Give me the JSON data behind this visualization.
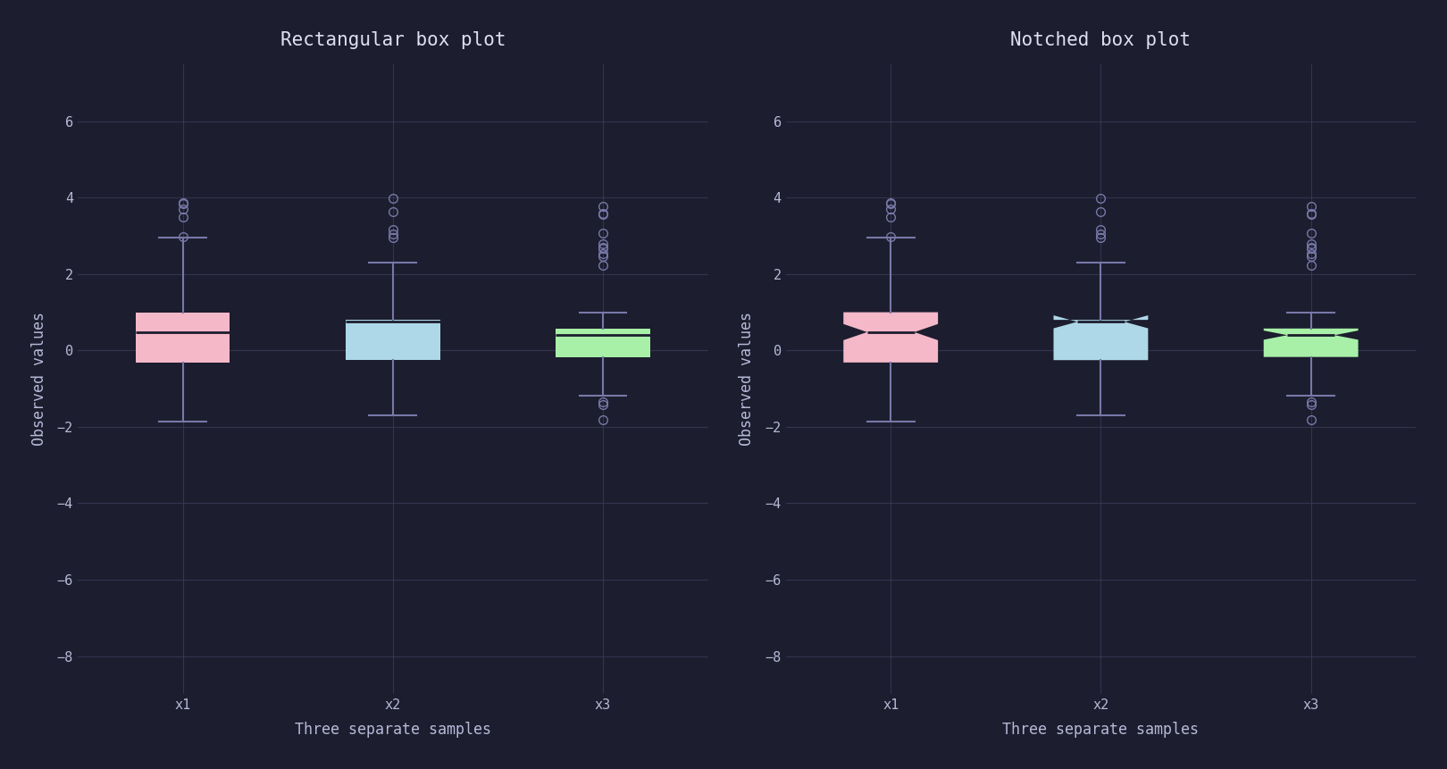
{
  "title_left": "Rectangular box plot",
  "title_right": "Notched box plot",
  "xlabel": "Three separate samples",
  "ylabel": "Observed values",
  "xtick_labels": [
    "x1",
    "x2",
    "x3"
  ],
  "background_color": "#1c1d2e",
  "axes_background": "#1c1d2e",
  "grid_color": "#3a3b58",
  "text_color": "#b8b9d8",
  "title_color": "#e0e1f0",
  "box_colors": [
    "#f4b8c8",
    "#aed8e8",
    "#a8f0a8"
  ],
  "median_color": "#1c1d2e",
  "whisker_color": "#7878a8",
  "flier_color": "#7878a8",
  "ylim": [
    -9,
    7.5
  ],
  "yticks": [
    -8,
    -6,
    -4,
    -2,
    0,
    2,
    4,
    6
  ],
  "font_family": "monospace",
  "title_fontsize": 15,
  "label_fontsize": 12,
  "tick_fontsize": 11
}
